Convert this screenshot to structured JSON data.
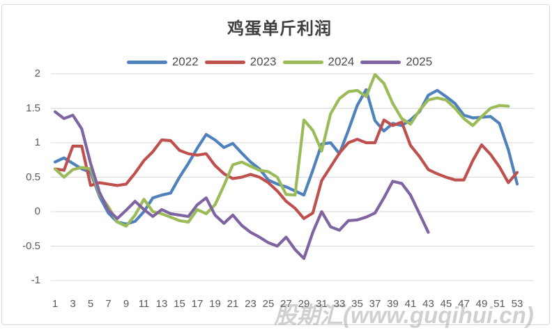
{
  "chart": {
    "title": "鸡蛋单斤利润",
    "watermark": "股期汇(www.guqihui.cn)"
  },
  "colors": {
    "frame_border": "#D9D9D9",
    "grid": "#D9D9D9",
    "title_text": "#404040",
    "legend_text": "#4D4D4D",
    "axis_text": "#595959",
    "watermark": "#ABABAB"
  },
  "chart_data": {
    "type": "line",
    "title": "鸡蛋单斤利润",
    "xlabel": "",
    "ylabel": "",
    "x_unit": "week_of_year",
    "xlim": [
      1,
      53
    ],
    "ylim": [
      -1,
      2
    ],
    "grid": true,
    "legend_position": "top",
    "x_tick_labels": [
      "1",
      "3",
      "5",
      "7",
      "9",
      "11",
      "13",
      "15",
      "17",
      "19",
      "21",
      "23",
      "25",
      "27",
      "29",
      "31",
      "33",
      "35",
      "37",
      "39",
      "41",
      "43",
      "45",
      "47",
      "49",
      "51",
      "53"
    ],
    "y_tick_labels": [
      "2",
      "1.5",
      "1",
      "0.5",
      "0",
      "-0.5",
      "-1"
    ],
    "series": [
      {
        "name": "2022",
        "color": "#4F81BD",
        "start_week": 1,
        "values": [
          0.72,
          0.78,
          0.7,
          0.62,
          0.57,
          0.22,
          -0.02,
          -0.15,
          -0.18,
          -0.14,
          0.0,
          0.2,
          0.24,
          0.27,
          0.5,
          0.7,
          0.92,
          1.12,
          1.04,
          0.93,
          0.99,
          0.85,
          0.72,
          0.62,
          0.46,
          0.4,
          0.36,
          0.3,
          0.24,
          0.6,
          0.98,
          1.0,
          0.84,
          1.18,
          1.54,
          1.77,
          1.32,
          1.17,
          1.28,
          1.25,
          1.33,
          1.45,
          1.69,
          1.76,
          1.67,
          1.57,
          1.4,
          1.36,
          1.37,
          1.38,
          1.28,
          0.9,
          0.4
        ]
      },
      {
        "name": "2023",
        "color": "#C0504D",
        "start_week": 1,
        "values": [
          0.62,
          0.6,
          0.95,
          0.95,
          0.38,
          0.42,
          0.4,
          0.38,
          0.4,
          0.56,
          0.74,
          0.87,
          1.04,
          1.03,
          0.89,
          0.84,
          0.82,
          0.84,
          0.67,
          0.55,
          0.48,
          0.5,
          0.54,
          0.5,
          0.42,
          0.3,
          0.15,
          0.05,
          -0.1,
          -0.02,
          0.45,
          0.65,
          0.85,
          1.0,
          1.05,
          1.0,
          1.0,
          1.33,
          1.25,
          1.3,
          0.96,
          0.8,
          0.61,
          0.55,
          0.5,
          0.46,
          0.46,
          0.74,
          0.97,
          0.83,
          0.65,
          0.42,
          0.57
        ]
      },
      {
        "name": "2024",
        "color": "#9BBB59",
        "start_week": 1,
        "values": [
          0.62,
          0.5,
          0.61,
          0.64,
          0.62,
          0.25,
          0.07,
          -0.15,
          -0.21,
          -0.05,
          0.18,
          0.0,
          -0.03,
          -0.08,
          -0.13,
          -0.15,
          0.03,
          -0.03,
          0.1,
          0.38,
          0.68,
          0.72,
          0.66,
          0.6,
          0.58,
          0.5,
          0.25,
          0.24,
          1.33,
          1.18,
          0.88,
          1.42,
          1.64,
          1.74,
          1.76,
          1.67,
          1.99,
          1.86,
          1.57,
          1.35,
          1.27,
          1.47,
          1.62,
          1.65,
          1.62,
          1.5,
          1.35,
          1.25,
          1.38,
          1.5,
          1.54,
          1.53
        ]
      },
      {
        "name": "2025",
        "color": "#8064A2",
        "start_week": 1,
        "values": [
          1.45,
          1.35,
          1.4,
          1.2,
          0.7,
          0.28,
          0.02,
          -0.1,
          0.02,
          0.15,
          0.03,
          -0.07,
          0.03,
          -0.03,
          -0.05,
          -0.07,
          0.1,
          0.2,
          -0.05,
          -0.17,
          -0.05,
          -0.2,
          -0.3,
          -0.37,
          -0.45,
          -0.5,
          -0.37,
          -0.55,
          -0.68,
          -0.3,
          0.0,
          -0.22,
          -0.27,
          -0.13,
          -0.12,
          -0.08,
          -0.02,
          0.2,
          0.44,
          0.41,
          0.24,
          -0.03,
          -0.3
        ]
      }
    ]
  }
}
